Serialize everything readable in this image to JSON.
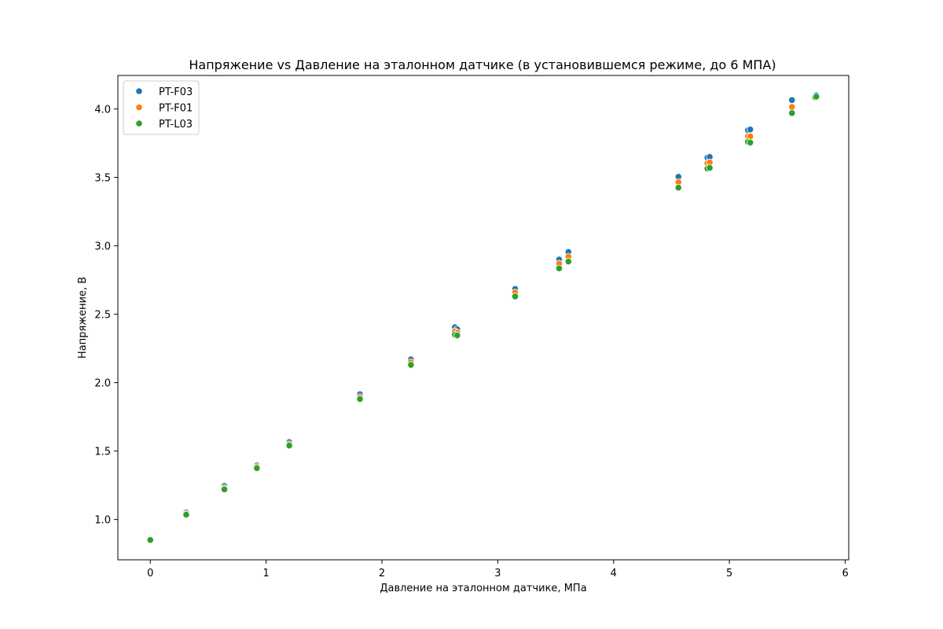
{
  "chart_data": {
    "type": "scatter",
    "title": "Напряжение vs Давление на эталонном датчике (в установившемся режиме, до 6 МПА)",
    "xlabel": "Давление на эталонном датчике, МПа",
    "ylabel": "Напряжение, В",
    "xlim": [
      -0.28,
      6.03
    ],
    "ylim": [
      0.705,
      4.245
    ],
    "xticks": [
      0,
      1,
      2,
      3,
      4,
      5,
      6
    ],
    "xtick_labels": [
      "0",
      "1",
      "2",
      "3",
      "4",
      "5",
      "6"
    ],
    "yticks": [
      1.0,
      1.5,
      2.0,
      2.5,
      3.0,
      3.5,
      4.0
    ],
    "ytick_labels": [
      "1.0",
      "1.5",
      "2.0",
      "2.5",
      "3.0",
      "3.5",
      "4.0"
    ],
    "grid": false,
    "legend_position": "top-left",
    "series": [
      {
        "name": "PT-F03",
        "color": "#1f77b4",
        "points": [
          [
            0.0,
            0.86
          ],
          [
            0.31,
            1.05
          ],
          [
            0.64,
            1.245
          ],
          [
            0.92,
            1.395
          ],
          [
            1.2,
            1.565
          ],
          [
            1.81,
            1.915
          ],
          [
            2.25,
            2.17
          ],
          [
            2.63,
            2.405
          ],
          [
            2.65,
            2.39
          ],
          [
            3.15,
            2.685
          ],
          [
            3.53,
            2.9
          ],
          [
            3.61,
            2.955
          ],
          [
            4.56,
            3.505
          ],
          [
            4.81,
            3.645
          ],
          [
            4.83,
            3.65
          ],
          [
            5.16,
            3.845
          ],
          [
            5.18,
            3.85
          ],
          [
            5.54,
            4.065
          ],
          [
            5.74,
            4.085
          ],
          [
            5.75,
            4.1
          ]
        ]
      },
      {
        "name": "PT-F01",
        "color": "#ff7f0e",
        "points": [
          [
            0.0,
            0.855
          ],
          [
            0.31,
            1.04
          ],
          [
            0.64,
            1.23
          ],
          [
            0.92,
            1.385
          ],
          [
            1.2,
            1.55
          ],
          [
            1.81,
            1.895
          ],
          [
            2.25,
            2.15
          ],
          [
            2.63,
            2.375
          ],
          [
            2.65,
            2.365
          ],
          [
            3.15,
            2.66
          ],
          [
            3.53,
            2.87
          ],
          [
            3.61,
            2.92
          ],
          [
            4.56,
            3.465
          ],
          [
            4.81,
            3.605
          ],
          [
            4.83,
            3.61
          ],
          [
            5.16,
            3.8
          ],
          [
            5.18,
            3.8
          ],
          [
            5.54,
            4.015
          ],
          [
            5.74,
            4.085
          ],
          [
            5.75,
            4.09
          ]
        ]
      },
      {
        "name": "PT-L03",
        "color": "#2ca02c",
        "points": [
          [
            0.0,
            0.85
          ],
          [
            0.31,
            1.035
          ],
          [
            0.64,
            1.22
          ],
          [
            0.92,
            1.375
          ],
          [
            1.2,
            1.54
          ],
          [
            1.81,
            1.88
          ],
          [
            2.25,
            2.13
          ],
          [
            2.63,
            2.35
          ],
          [
            2.65,
            2.345
          ],
          [
            3.15,
            2.63
          ],
          [
            3.53,
            2.835
          ],
          [
            3.61,
            2.885
          ],
          [
            4.56,
            3.425
          ],
          [
            4.81,
            3.565
          ],
          [
            4.83,
            3.57
          ],
          [
            5.16,
            3.76
          ],
          [
            5.18,
            3.755
          ],
          [
            5.54,
            3.97
          ],
          [
            5.74,
            4.085
          ],
          [
            5.75,
            4.09
          ]
        ]
      }
    ]
  }
}
